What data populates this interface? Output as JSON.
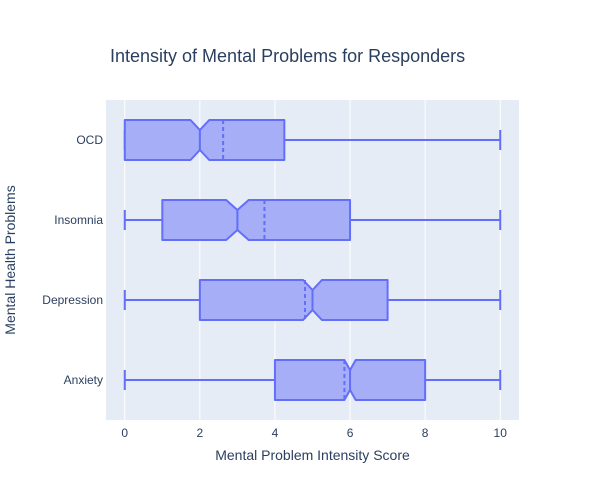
{
  "chart_data": {
    "type": "box",
    "orientation": "horizontal",
    "notched": true,
    "show_mean": true,
    "title": "Intensity of Mental Problems for Responders",
    "xlabel": "Mental Problem Intensity Score",
    "ylabel": "Mental Health Problems",
    "xlim": [
      -0.5,
      10.5
    ],
    "x_ticks": [
      0,
      2,
      4,
      6,
      8,
      10
    ],
    "categories": [
      "Anxiety",
      "Depression",
      "Insomnia",
      "OCD"
    ],
    "boxes": [
      {
        "category": "Anxiety",
        "min": 0,
        "q1": 4,
        "median": 6,
        "q3": 8,
        "max": 10,
        "mean": 5.85,
        "notch_low": 5.85,
        "notch_high": 6.15
      },
      {
        "category": "Depression",
        "min": 0,
        "q1": 2,
        "median": 5,
        "q3": 7,
        "max": 10,
        "mean": 4.8,
        "notch_low": 4.75,
        "notch_high": 5.25
      },
      {
        "category": "Insomnia",
        "min": 0,
        "q1": 1,
        "median": 3,
        "q3": 6,
        "max": 10,
        "mean": 3.72,
        "notch_low": 2.7,
        "notch_high": 3.3
      },
      {
        "category": "OCD",
        "min": 0,
        "q1": 0,
        "median": 2,
        "q3": 4.25,
        "max": 10,
        "mean": 2.62,
        "notch_low": 1.75,
        "notch_high": 2.25
      }
    ],
    "grid": true,
    "colors": {
      "box_fill": "#a1abf5",
      "box_line": "#636efa",
      "plot_bg": "#e5ecf6",
      "grid": "#ffffff",
      "text": "#2a3f5f"
    }
  }
}
